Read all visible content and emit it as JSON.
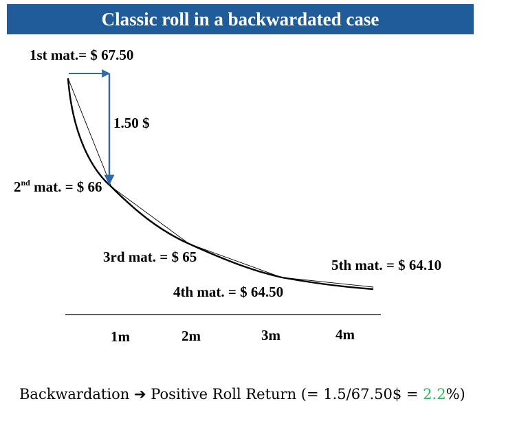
{
  "title": "Classic roll in a backwardated case",
  "labels": {
    "m1": "1st mat.= $ 67.50",
    "m2_num": "2",
    "m2_sup": "nd",
    "m2_rest": " mat. = $ 66",
    "m3": "3rd mat. = $ 65",
    "m4": "4th mat. = $ 64.50",
    "m5": "5th mat. = $ 64.10",
    "diff": "1.50 $"
  },
  "axis": {
    "ticks": [
      "1m",
      "2m",
      "3m",
      "4m"
    ]
  },
  "footer": {
    "part1": "Backwardation",
    "arrow": "➔",
    "part2": "Positive Roll Return (= 1.5/67.50$ = ",
    "pct": "2.2",
    "part3": "%)"
  },
  "colors": {
    "title_bg": "#1f5c99",
    "arrow": "#2e6aa8",
    "highlight": "#2cb55a"
  }
}
